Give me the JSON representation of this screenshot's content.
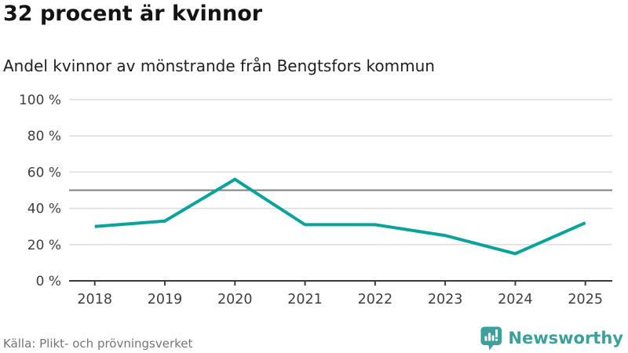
{
  "header": {
    "title": "32 procent är kvinnor",
    "subtitle": "Andel kvinnor av mönstrande från Bengtsfors kommun"
  },
  "footer": {
    "source": "Källa: Plikt- och prövningsverket",
    "brand": "Newsworthy"
  },
  "colors": {
    "line": "#0aa39c",
    "reference_line": "#7f7f7f",
    "gridline": "#dcdcdc",
    "axis": "#3c3c3c",
    "tick_label": "#3f3f3f",
    "brand_teal": "#3aa19d"
  },
  "chart_data": {
    "type": "line",
    "title": "32 procent är kvinnor",
    "subtitle": "Andel kvinnor av mönstrande från Bengtsfors kommun",
    "categories": [
      "2018",
      "2019",
      "2020",
      "2021",
      "2022",
      "2023",
      "2024",
      "2025"
    ],
    "series": [
      {
        "name": "Andel kvinnor av mönstrande",
        "values": [
          30,
          33,
          56,
          31,
          31,
          25,
          15,
          32
        ]
      }
    ],
    "reference_line": 50,
    "ylim": [
      0,
      100
    ],
    "yticks": [
      0,
      20,
      40,
      60,
      80,
      100
    ],
    "ytick_labels": [
      "0 %",
      "20 %",
      "40 %",
      "60 %",
      "80 %",
      "100 %"
    ],
    "xlabel": "",
    "ylabel": "",
    "grid": true,
    "legend": false
  }
}
